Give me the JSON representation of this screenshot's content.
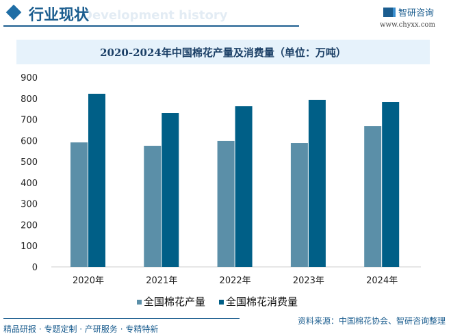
{
  "header": {
    "title": "行业现状",
    "bg_text": "Development history",
    "logo_text": "智研咨询",
    "url": "www.chyxx.com"
  },
  "colors": {
    "production": "#5b8fa8",
    "consumption": "#005f87"
  },
  "chart_data": {
    "type": "bar",
    "title": "2020-2024年中国棉花产量及消费量（单位：万吨）",
    "categories": [
      "2020年",
      "2021年",
      "2022年",
      "2023年",
      "2024年"
    ],
    "series": [
      {
        "name": "全国棉花产量",
        "values": [
          591,
          575,
          598,
          588,
          669
        ]
      },
      {
        "name": "全国棉花消费量",
        "values": [
          822,
          731,
          763,
          793,
          783
        ]
      }
    ],
    "ylim": [
      0,
      900
    ],
    "yticks": [
      "0",
      "100",
      "200",
      "300",
      "400",
      "500",
      "600",
      "700",
      "800",
      "900"
    ],
    "grid": false,
    "legend": "bottom"
  },
  "footer": {
    "source": "资料来源：中国棉花协会、智研咨询整理",
    "slogan": "精品研报 · 专题定制 · 产研服务 · 专精特新"
  }
}
